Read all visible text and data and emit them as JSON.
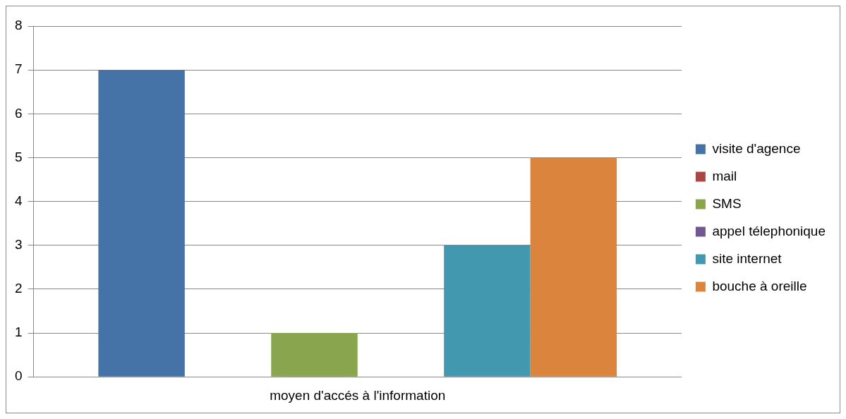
{
  "chart_data": {
    "type": "bar",
    "categories": [
      "moyen d'accés à l'information"
    ],
    "series": [
      {
        "name": "visite d'agence",
        "color": "#4572a7",
        "values": [
          7
        ]
      },
      {
        "name": "mail",
        "color": "#aa4643",
        "values": [
          0
        ]
      },
      {
        "name": "SMS",
        "color": "#89a54e",
        "values": [
          1
        ]
      },
      {
        "name": "appel télephonique",
        "color": "#71588f",
        "values": [
          0
        ]
      },
      {
        "name": "site internet",
        "color": "#4198af",
        "values": [
          3
        ]
      },
      {
        "name": "bouche à oreille",
        "color": "#db843d",
        "values": [
          5
        ]
      }
    ],
    "ylim": [
      0,
      8
    ],
    "yticks": [
      0,
      1,
      2,
      3,
      4,
      5,
      6,
      7,
      8
    ],
    "grid": "y",
    "legend": "right"
  }
}
